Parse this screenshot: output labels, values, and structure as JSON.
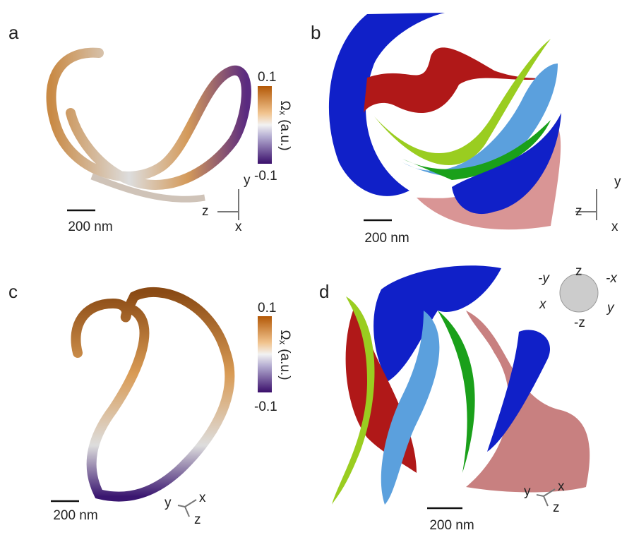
{
  "panels": [
    {
      "label": "a",
      "scale_bar": "200 nm",
      "axes": [
        "y",
        "z",
        "x"
      ],
      "colorbar": {
        "max": "0.1",
        "title": "Ω",
        "subscript": "x",
        "unit": "(a.u.)",
        "min": "-0.1"
      }
    },
    {
      "label": "b",
      "scale_bar": "200 nm",
      "axes": [
        "y",
        "z",
        "x"
      ]
    },
    {
      "label": "c",
      "scale_bar": "200 nm",
      "axes": [
        "y",
        "x",
        "z"
      ],
      "colorbar": {
        "max": "0.1",
        "title": "Ω",
        "subscript": "x",
        "unit": "(a.u.)",
        "min": "-0.1"
      }
    },
    {
      "label": "d",
      "scale_bar": "200 nm",
      "axes": [
        "y",
        "x",
        "z"
      ],
      "orientation": [
        "z",
        "-y",
        "-x",
        "x",
        "y",
        "-z"
      ]
    }
  ]
}
